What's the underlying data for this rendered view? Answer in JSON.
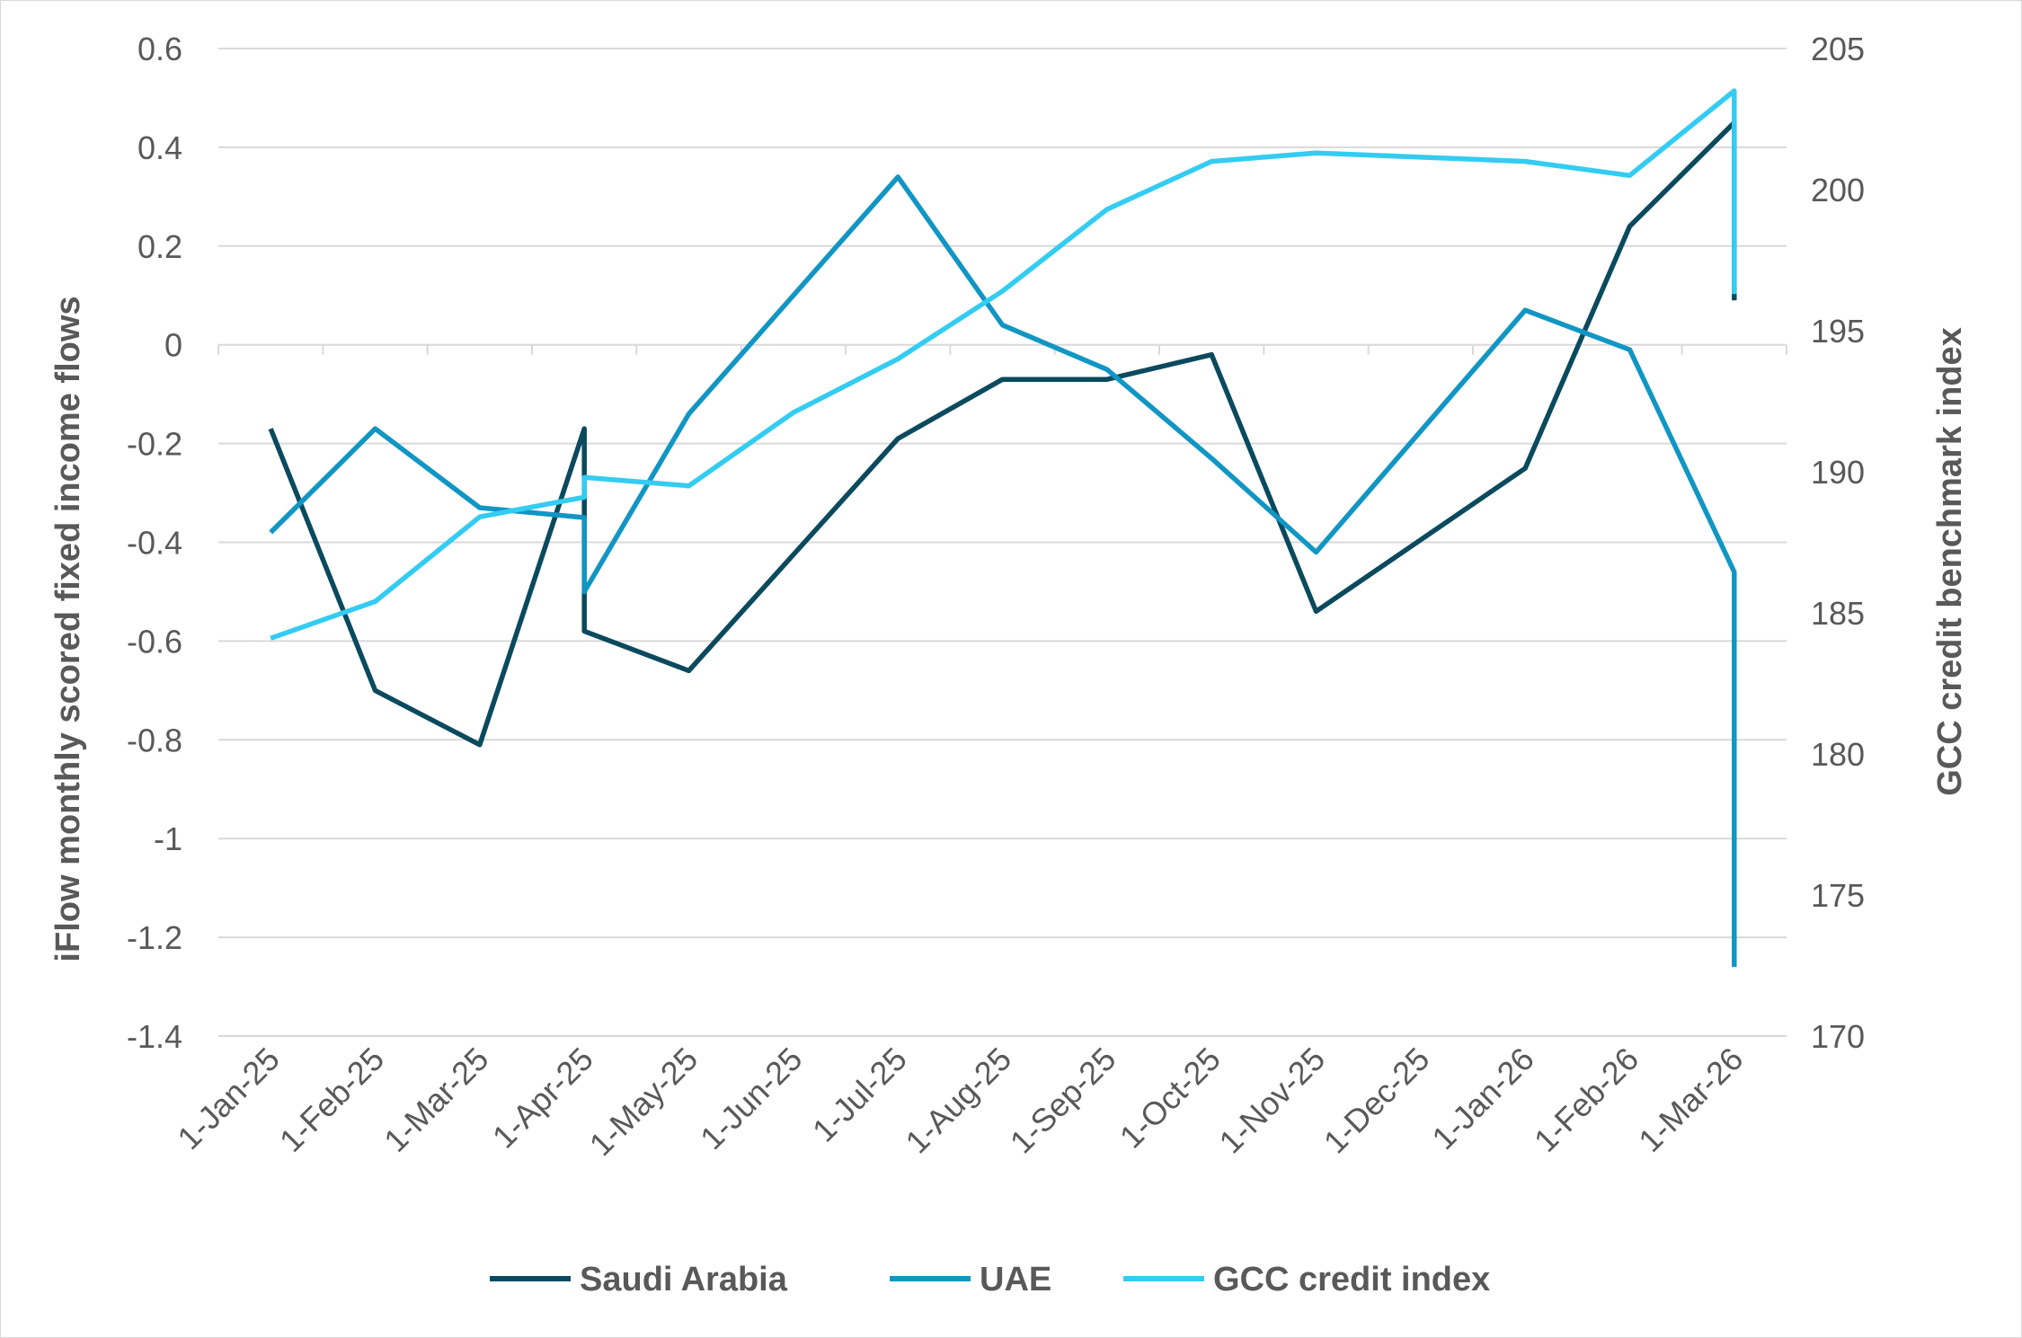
{
  "chart_data": {
    "type": "line",
    "categories": [
      "1-Jan-25",
      "1-Feb-25",
      "1-Mar-25",
      "1-Apr-25",
      "1-May-25",
      "1-Jun-25",
      "1-Jul-25",
      "1-Aug-25",
      "1-Sep-25",
      "1-Oct-25",
      "1-Nov-25",
      "1-Dec-25",
      "1-Jan-26",
      "1-Feb-26",
      "1-Mar-26"
    ],
    "ylabel": "iFlow monthly scored fixed income flows",
    "y2label": "GCC credit benchmark index",
    "ylim": [
      -1.4,
      0.6
    ],
    "y2lim": [
      170,
      205
    ],
    "yticks": [
      "0.6",
      "0.4",
      "0.2",
      "0",
      "-0.2",
      "-0.4",
      "-0.6",
      "-0.8",
      "-1",
      "-1.2",
      "-1.4"
    ],
    "y2ticks": [
      "205",
      "200",
      "195",
      "190",
      "185",
      "180",
      "175",
      "170"
    ],
    "grid": "horizontal",
    "legend_position": "bottom",
    "series": [
      {
        "name": "Saudi Arabia",
        "axis": "left",
        "color": "#0b4a5e",
        "points": [
          [
            "1-Jan-25",
            -0.17
          ],
          [
            "1-Feb-25",
            -0.7
          ],
          [
            "1-Mar-25",
            -0.81
          ],
          [
            "1-Apr-25",
            -0.17
          ],
          [
            "1-Apr-25",
            -0.58
          ],
          [
            "1-May-25",
            -0.66
          ],
          [
            "1-Jul-25",
            -0.19
          ],
          [
            "1-Aug-25",
            -0.07
          ],
          [
            "1-Sep-25",
            -0.07
          ],
          [
            "1-Oct-25",
            -0.02
          ],
          [
            "1-Nov-25",
            -0.54
          ],
          [
            "1-Jan-26",
            -0.25
          ],
          [
            "1-Feb-26",
            0.24
          ],
          [
            "1-Mar-26",
            0.45
          ],
          [
            "1-Mar-26",
            0.09
          ]
        ]
      },
      {
        "name": "UAE",
        "axis": "left",
        "color": "#1196c4",
        "points": [
          [
            "1-Jan-25",
            -0.38
          ],
          [
            "1-Feb-25",
            -0.17
          ],
          [
            "1-Mar-25",
            -0.33
          ],
          [
            "1-Apr-25",
            -0.35
          ],
          [
            "1-Apr-25",
            -0.5
          ],
          [
            "1-May-25",
            -0.14
          ],
          [
            "1-Jul-25",
            0.34
          ],
          [
            "1-Aug-25",
            0.04
          ],
          [
            "1-Sep-25",
            -0.05
          ],
          [
            "1-Oct-25",
            -0.23
          ],
          [
            "1-Nov-25",
            -0.42
          ],
          [
            "1-Jan-26",
            0.07
          ],
          [
            "1-Feb-26",
            -0.01
          ],
          [
            "1-Mar-26",
            -0.46
          ],
          [
            "1-Mar-26",
            -1.26
          ]
        ]
      },
      {
        "name": "GCC credit index",
        "axis": "right",
        "color": "#33ccf2",
        "points": [
          [
            "1-Jan-25",
            184.1
          ],
          [
            "1-Feb-25",
            185.4
          ],
          [
            "1-Mar-25",
            188.4
          ],
          [
            "1-Apr-25",
            189.1
          ],
          [
            "1-Apr-25",
            189.8
          ],
          [
            "1-May-25",
            189.5
          ],
          [
            "1-Jun-25",
            192.1
          ],
          [
            "1-Jul-25",
            194.0
          ],
          [
            "1-Aug-25",
            196.4
          ],
          [
            "1-Sep-25",
            199.3
          ],
          [
            "1-Oct-25",
            201.0
          ],
          [
            "1-Nov-25",
            201.3
          ],
          [
            "1-Jan-26",
            201.0
          ],
          [
            "1-Feb-26",
            200.5
          ],
          [
            "1-Mar-26",
            203.5
          ],
          [
            "1-Mar-26",
            196.3
          ]
        ]
      }
    ]
  }
}
